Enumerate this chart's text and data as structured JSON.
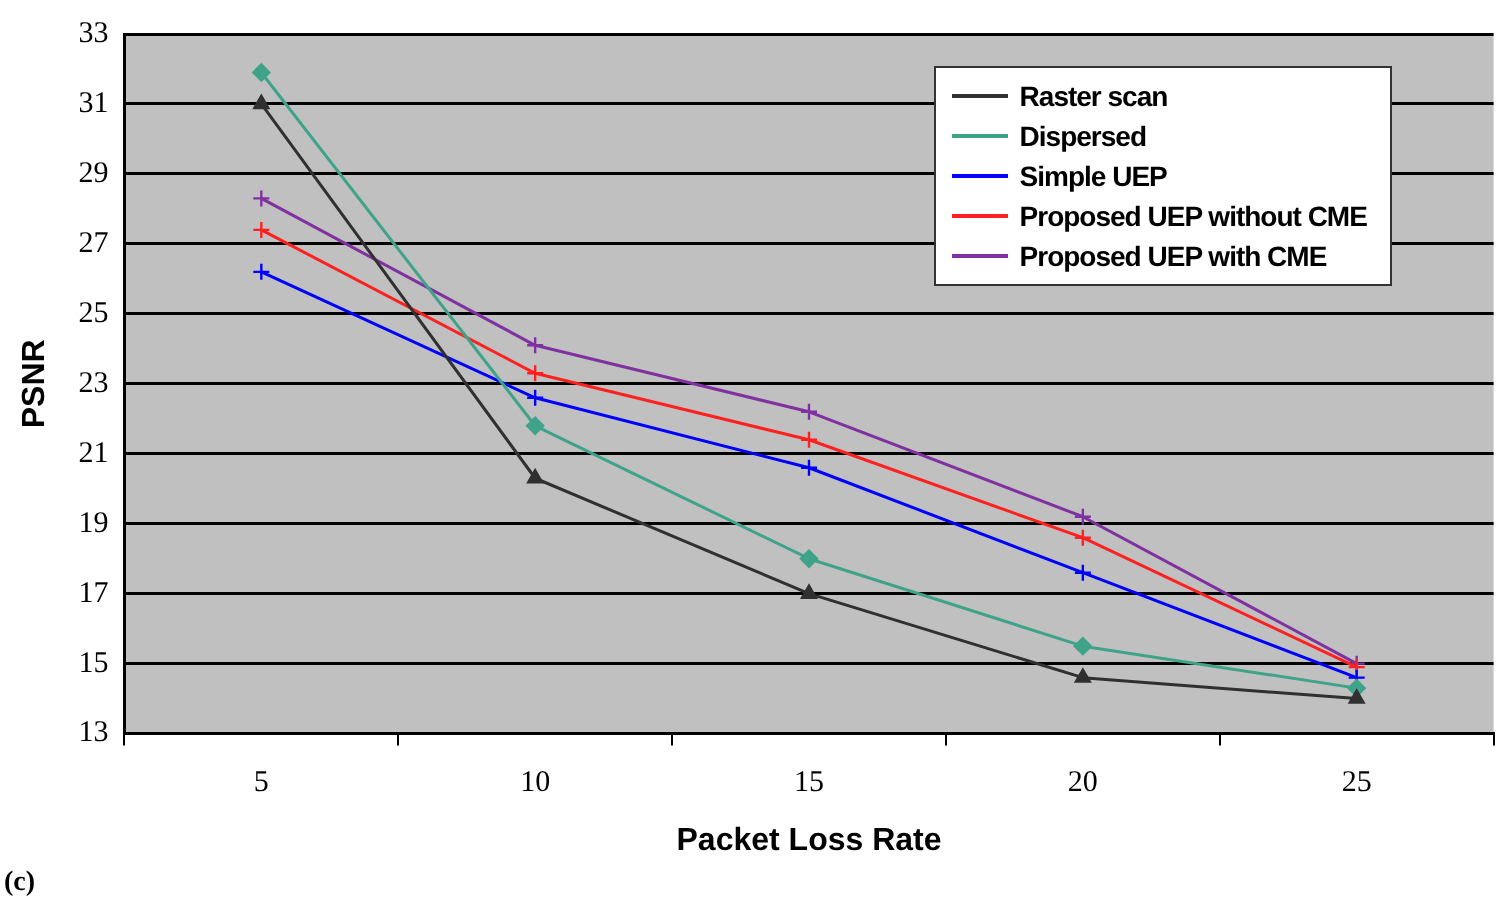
{
  "chart_data": {
    "type": "line",
    "xlabel": "Packet Loss Rate",
    "ylabel": "PSNR",
    "categories": [
      "5",
      "10",
      "15",
      "20",
      "25"
    ],
    "series": [
      {
        "name": "Raster scan",
        "color": "#303030",
        "marker": "triangle",
        "values": [
          31,
          20.3,
          17,
          14.6,
          14
        ]
      },
      {
        "name": "Dispersed",
        "color": "#3fa38a",
        "marker": "diamond",
        "values": [
          31.9,
          21.8,
          18,
          15.5,
          14.3
        ]
      },
      {
        "name": "Simple UEP",
        "color": "#0000ff",
        "marker": "cross",
        "values": [
          26.2,
          22.6,
          20.6,
          17.6,
          14.6
        ]
      },
      {
        "name": "Proposed UEP without CME",
        "color": "#ff2020",
        "marker": "cross",
        "values": [
          27.4,
          23.3,
          21.4,
          18.6,
          14.9
        ]
      },
      {
        "name": "Proposed UEP with CME",
        "color": "#8030a0",
        "marker": "cross",
        "values": [
          28.3,
          24.1,
          22.2,
          19.2,
          15
        ]
      }
    ],
    "ylim": [
      13,
      33
    ],
    "yticks": [
      13,
      15,
      17,
      19,
      21,
      23,
      25,
      27,
      29,
      31,
      33
    ],
    "grid": "y",
    "legend": "top right",
    "line_style": "solid",
    "annotations": [
      "(c)"
    ]
  }
}
